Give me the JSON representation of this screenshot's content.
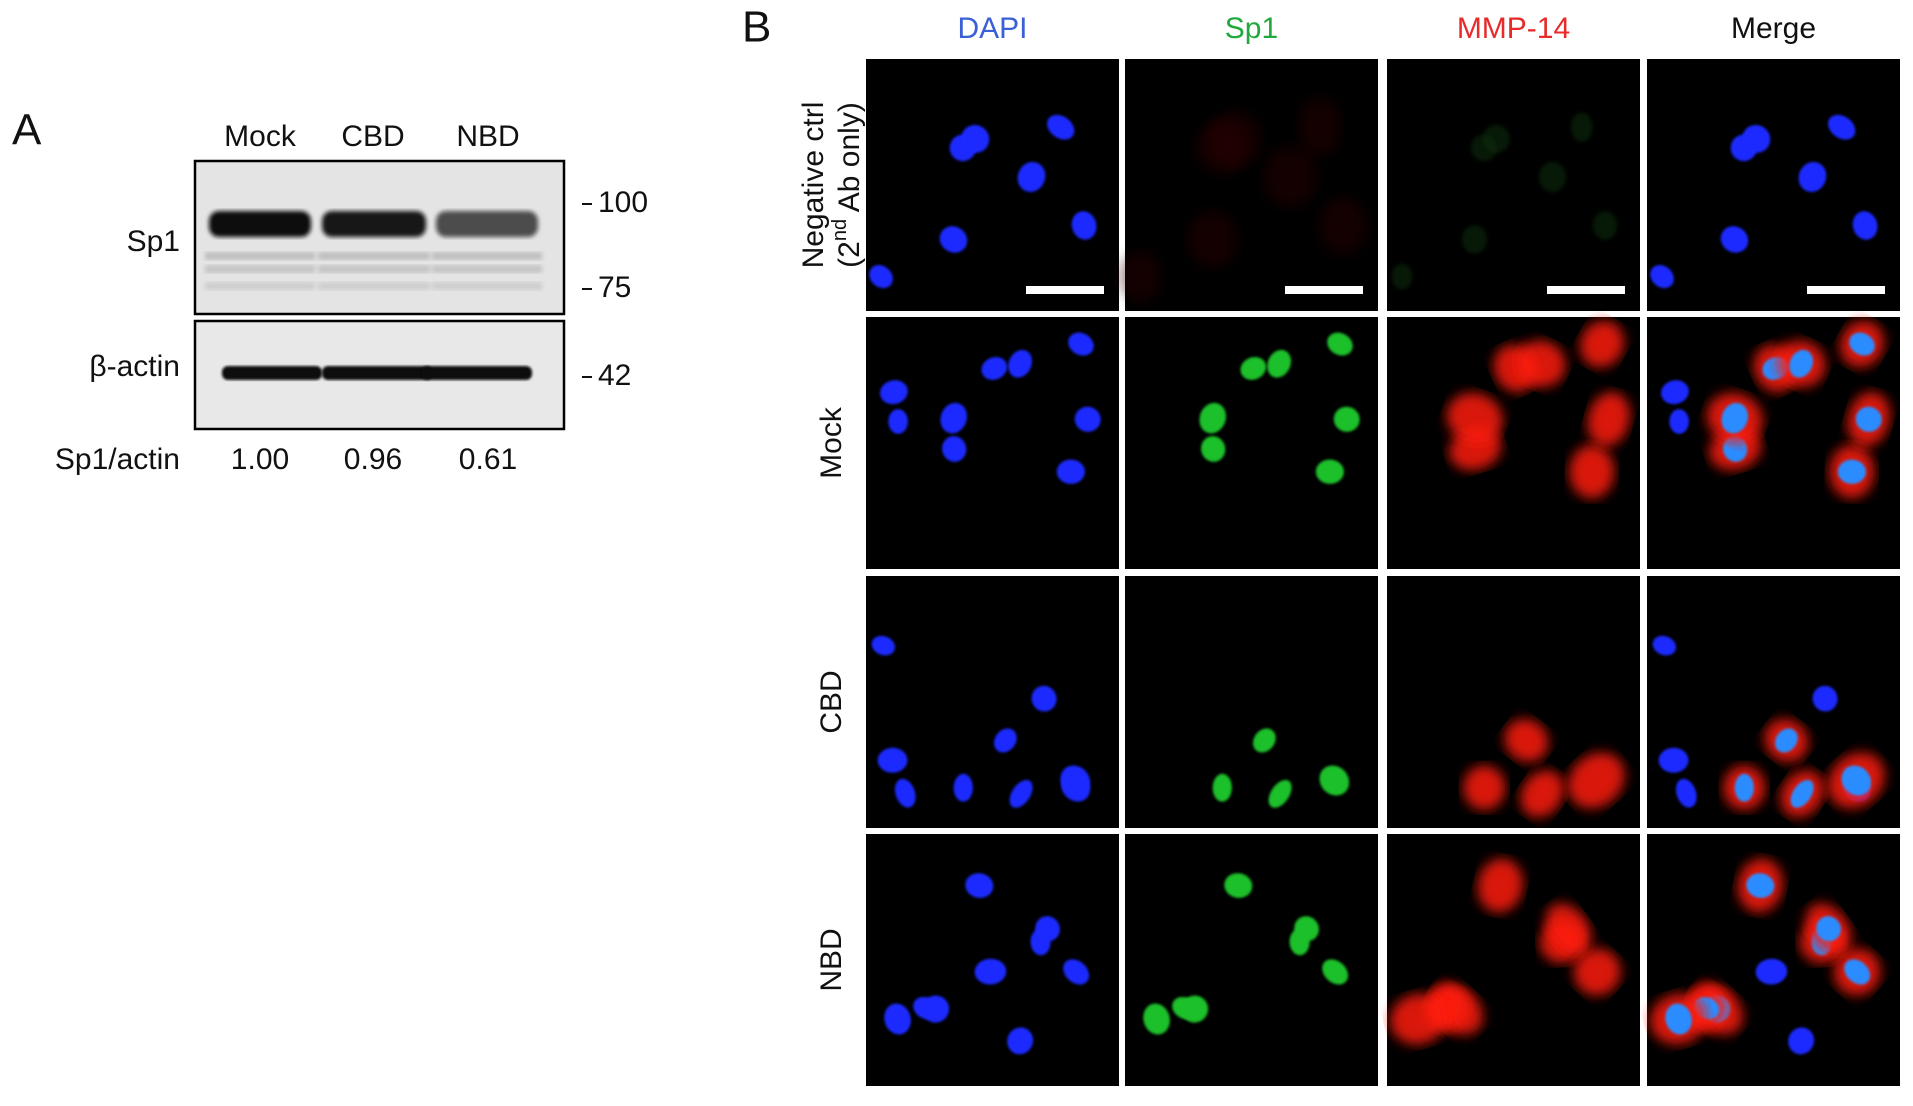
{
  "panel_a": {
    "label": "A",
    "lanes": [
      "Mock",
      "CBD",
      "NBD"
    ],
    "blots": [
      {
        "label": "Sp1",
        "markers": [
          "100",
          "75"
        ]
      },
      {
        "label": "β-actin",
        "markers": [
          "42"
        ]
      }
    ],
    "ratio": {
      "label": "Sp1/actin",
      "values": [
        "1.00",
        "0.96",
        "0.61"
      ]
    }
  },
  "panel_b": {
    "label": "B",
    "columns": [
      "DAPI",
      "Sp1",
      "MMP-14",
      "Merge"
    ],
    "rows": [
      {
        "line1": "Negative ctrl",
        "line2": [
          "(2",
          "nd",
          " Ab only)"
        ]
      },
      {
        "label": "Mock"
      },
      {
        "label": "CBD"
      },
      {
        "label": "NBD"
      }
    ]
  }
}
